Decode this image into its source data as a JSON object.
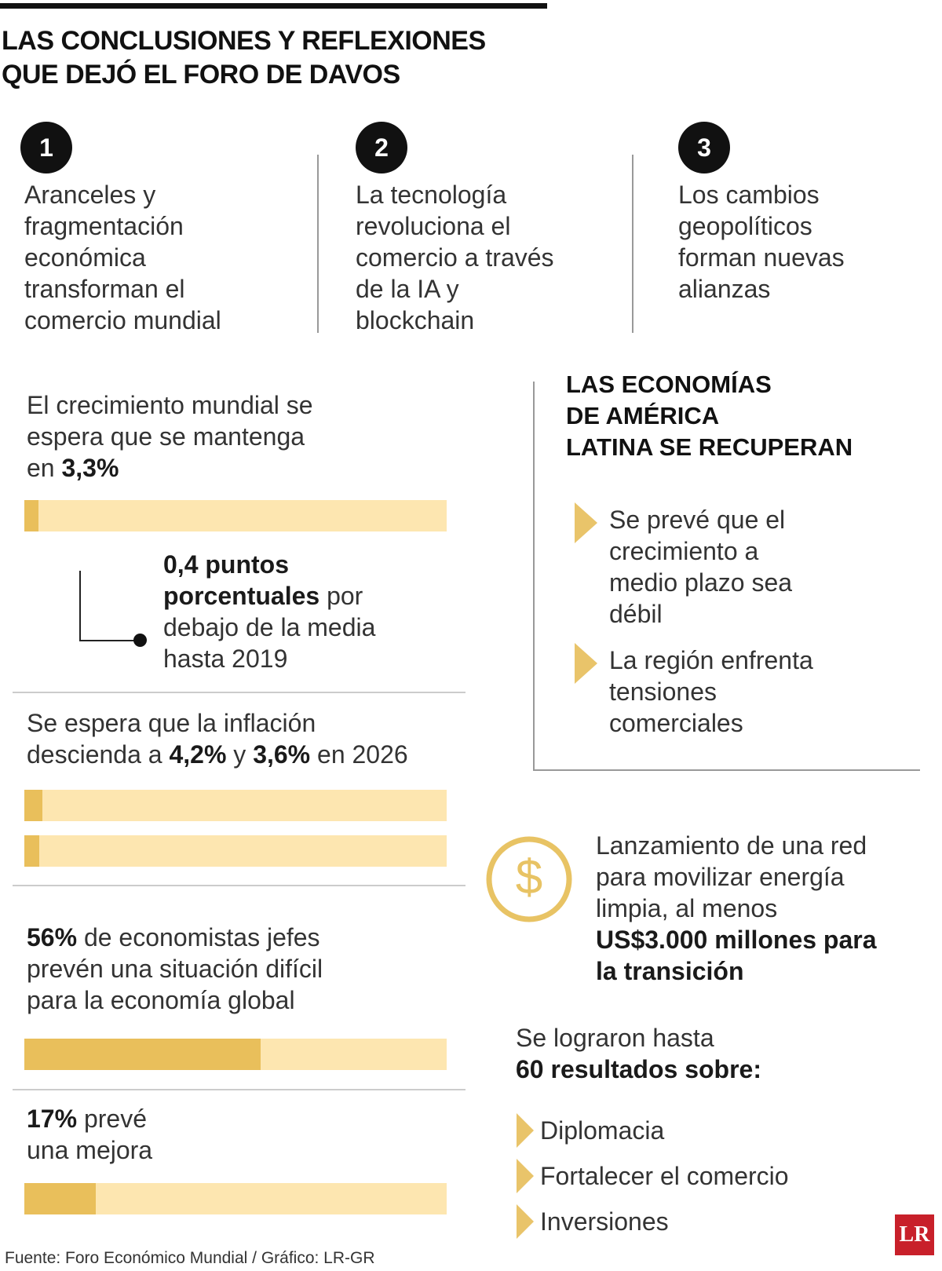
{
  "header": {
    "title_lines": [
      "LAS CONCLUSIONES Y REFLEXIONES",
      "QUE DEJÓ EL FORO DE DAVOS"
    ]
  },
  "points": [
    {
      "number": 1,
      "lines": [
        "Aranceles y",
        "fragmentación",
        "económica",
        "transforman el",
        "comercio mundial"
      ]
    },
    {
      "number": 2,
      "lines": [
        "La tecnología",
        "revoluciona el",
        "comercio a través",
        "de la IA y",
        "blockchain"
      ]
    },
    {
      "number": 3,
      "lines": [
        "Los cambios",
        "geopolíticos",
        "forman nuevas",
        "alianzas"
      ]
    }
  ],
  "bar_scale": [
    0,
    100
  ],
  "growth": {
    "lines": [
      "El crecimiento mundial se",
      "espera que se mantenga",
      [
        "en ",
        {
          "b": "3,3%"
        }
      ]
    ],
    "bars": [
      3.3
    ],
    "note": [
      [
        {
          "b": "0,4 puntos"
        }
      ],
      [
        {
          "b": "porcentuales"
        },
        " por"
      ],
      "debajo de la media",
      "hasta 2019"
    ]
  },
  "inflation": {
    "lines": [
      "Se espera que la inflación",
      [
        "descienda a ",
        {
          "b": "4,2%"
        },
        " y ",
        {
          "b": "3,6%"
        },
        " en 2026"
      ]
    ],
    "bars": [
      4.2,
      3.6
    ]
  },
  "economists": {
    "lines": [
      [
        {
          "b": "56%"
        },
        " de economistas jefes"
      ],
      "prevén una situación difícil",
      "para la economía global"
    ],
    "bars": [
      56
    ]
  },
  "improvement": {
    "lines": [
      [
        {
          "b": "17%"
        },
        " prevé"
      ],
      "una mejora"
    ],
    "bars": [
      17
    ]
  },
  "latam": {
    "title_lines": [
      "LAS ECONOMÍAS",
      "DE AMÉRICA",
      "LATINA SE RECUPERAN"
    ],
    "items": [
      [
        "Se prevé que el",
        "crecimiento a",
        "medio plazo sea",
        "débil"
      ],
      [
        "La región enfrenta",
        "tensiones",
        "comerciales"
      ]
    ]
  },
  "energy": {
    "icon": "$",
    "lines": [
      "Lanzamiento de una red",
      "para movilizar energía",
      "limpia, al menos",
      [
        {
          "b": "US$3.000 millones para"
        }
      ],
      [
        {
          "b": "la transición"
        }
      ]
    ]
  },
  "results": {
    "lines": [
      "Se lograron hasta",
      [
        {
          "b": "60 resultados sobre:"
        }
      ]
    ],
    "items": [
      "Diplomacia",
      "Fortalecer el comercio",
      "Inversiones"
    ]
  },
  "footer": {
    "source": "Fuente: Foro Económico Mundial / Gráfico: LR-GR",
    "logo": "LR"
  }
}
